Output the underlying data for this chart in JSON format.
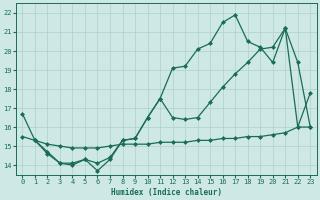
{
  "xlabel": "Humidex (Indice chaleur)",
  "bg_color": "#cde8e5",
  "grid_color": "#b0d0cc",
  "line_color": "#1a6b5a",
  "xlim": [
    -0.5,
    23.5
  ],
  "ylim": [
    13.5,
    22.5
  ],
  "xticks": [
    0,
    1,
    2,
    3,
    4,
    5,
    6,
    7,
    8,
    9,
    10,
    11,
    12,
    13,
    14,
    15,
    16,
    17,
    18,
    19,
    20,
    21,
    22,
    23
  ],
  "yticks": [
    14,
    15,
    16,
    17,
    18,
    19,
    20,
    21,
    22
  ],
  "line1_x": [
    0,
    1,
    2,
    3,
    4,
    5,
    6,
    7,
    8,
    9,
    10,
    11,
    12,
    13,
    14,
    15,
    16,
    17,
    18,
    19,
    20,
    21,
    22,
    23
  ],
  "line1_y": [
    16.7,
    15.3,
    14.6,
    14.1,
    14.1,
    14.3,
    13.7,
    14.3,
    15.3,
    15.4,
    16.5,
    17.5,
    19.1,
    19.2,
    20.1,
    20.4,
    21.5,
    21.9,
    20.5,
    20.2,
    19.4,
    21.2,
    16.0,
    17.8
  ],
  "line2_x": [
    0,
    1,
    2,
    3,
    4,
    5,
    6,
    7,
    8,
    9,
    10,
    11,
    12,
    13,
    14,
    15,
    16,
    17,
    18,
    19,
    20,
    21,
    22,
    23
  ],
  "line2_y": [
    15.5,
    15.3,
    15.1,
    15.0,
    14.9,
    14.9,
    14.9,
    15.0,
    15.1,
    15.1,
    15.1,
    15.2,
    15.2,
    15.2,
    15.3,
    15.3,
    15.4,
    15.4,
    15.5,
    15.5,
    15.6,
    15.7,
    16.0,
    16.0
  ],
  "line3_x": [
    1,
    2,
    3,
    4,
    5,
    6,
    7,
    8,
    9,
    10,
    11,
    12,
    13,
    14,
    15,
    16,
    17,
    18,
    19,
    20,
    21,
    22,
    23
  ],
  "line3_y": [
    15.3,
    14.7,
    14.1,
    14.0,
    14.3,
    14.1,
    14.4,
    15.3,
    15.4,
    16.5,
    17.5,
    16.5,
    16.4,
    16.5,
    17.3,
    18.1,
    18.8,
    19.4,
    20.1,
    20.2,
    21.2,
    19.4,
    16.0
  ]
}
